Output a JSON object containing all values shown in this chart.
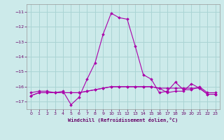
{
  "xlabel": "Windchill (Refroidissement éolien,°C)",
  "background_color": "#cceaea",
  "grid_color": "#aad4d4",
  "line_color": "#aa00aa",
  "x": [
    0,
    1,
    2,
    3,
    4,
    5,
    6,
    7,
    8,
    9,
    10,
    11,
    12,
    13,
    14,
    15,
    16,
    17,
    18,
    19,
    20,
    21,
    22,
    23
  ],
  "curve1": [
    -16.4,
    -16.3,
    -16.3,
    -16.4,
    -16.3,
    -17.2,
    -16.7,
    -15.5,
    -14.4,
    -12.5,
    -11.1,
    -11.4,
    -11.5,
    -13.3,
    -15.2,
    -15.5,
    -16.4,
    -16.3,
    -15.7,
    -16.2,
    -16.2,
    -16.0,
    -16.4,
    -16.4
  ],
  "curve2": [
    -16.6,
    -16.4,
    -16.4,
    -16.4,
    -16.4,
    -16.4,
    -16.4,
    -16.3,
    -16.2,
    -16.1,
    -16.0,
    -16.0,
    -16.0,
    -16.0,
    -16.0,
    -16.0,
    -16.1,
    -16.4,
    -16.3,
    -16.3,
    -15.8,
    -16.1,
    -16.5,
    -16.5
  ],
  "curve3": [
    -16.6,
    -16.4,
    -16.4,
    -16.4,
    -16.4,
    -16.4,
    -16.4,
    -16.3,
    -16.2,
    -16.1,
    -16.0,
    -16.0,
    -16.0,
    -16.0,
    -16.0,
    -16.0,
    -16.1,
    -16.1,
    -16.1,
    -16.1,
    -16.1,
    -16.1,
    -16.5,
    -16.5
  ],
  "ylim": [
    -17.5,
    -10.5
  ],
  "yticks": [
    -17,
    -16,
    -15,
    -14,
    -13,
    -12,
    -11
  ],
  "xticks": [
    0,
    1,
    2,
    3,
    4,
    5,
    6,
    7,
    8,
    9,
    10,
    11,
    12,
    13,
    14,
    15,
    16,
    17,
    18,
    19,
    20,
    21,
    22,
    23
  ],
  "xlim": [
    -0.5,
    23.5
  ]
}
